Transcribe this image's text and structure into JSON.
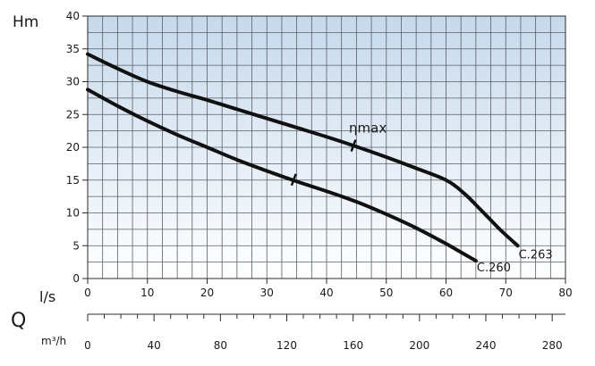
{
  "chart_data": {
    "type": "line",
    "title": "",
    "ylabel": "Hm",
    "xlabel": "l/s",
    "x2label_symbol": "Q",
    "x2label_unit": "m³/h",
    "xlim": [
      0,
      80
    ],
    "ylim": [
      0,
      40
    ],
    "x2lim": [
      0,
      288
    ],
    "x_ticks": [
      0,
      10,
      20,
      30,
      40,
      50,
      60,
      70,
      80
    ],
    "y_ticks": [
      0,
      5,
      10,
      15,
      20,
      25,
      30,
      35,
      40
    ],
    "x2_ticks": [
      0,
      40,
      80,
      120,
      160,
      200,
      240,
      280
    ],
    "grid": true,
    "colors": {
      "curve": "#111111",
      "grid": "#5a5f66",
      "bg_top": "#c6d9ec",
      "bg_bottom": "#ffffff"
    },
    "series": [
      {
        "name": "C.263",
        "x": [
          0,
          5,
          10,
          15,
          20,
          25,
          30,
          35,
          40,
          45,
          50,
          55,
          60,
          63,
          66,
          69,
          72
        ],
        "y": [
          34.2,
          32.0,
          30.0,
          28.5,
          27.2,
          25.8,
          24.4,
          23.0,
          21.6,
          20.1,
          18.5,
          16.8,
          15.0,
          13.0,
          10.3,
          7.5,
          5.0
        ]
      },
      {
        "name": "C.260",
        "x": [
          0,
          5,
          10,
          15,
          20,
          25,
          30,
          35,
          40,
          45,
          50,
          55,
          60,
          65
        ],
        "y": [
          28.8,
          26.3,
          24.0,
          21.9,
          20.0,
          18.1,
          16.4,
          14.8,
          13.3,
          11.7,
          9.8,
          7.7,
          5.3,
          2.7
        ]
      }
    ],
    "annotations": [
      {
        "label": "ηmax",
        "series": "C.263",
        "x": 44.5,
        "y": 20.2
      },
      {
        "label": "",
        "series": "C.260",
        "x": 34.5,
        "y": 15.0
      }
    ]
  }
}
